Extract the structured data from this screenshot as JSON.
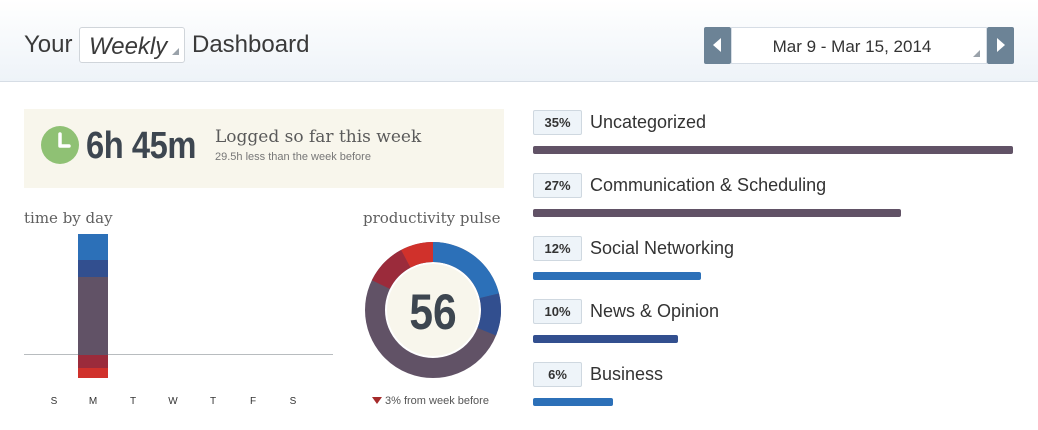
{
  "header": {
    "title_prefix": "Your",
    "period_value": "Weekly",
    "title_suffix": "Dashboard",
    "date_range": "Mar 9 - Mar 15, 2014"
  },
  "summary": {
    "total_time": "6h 45m",
    "label": "Logged so far this week",
    "comparison": "29.5h less than the week before"
  },
  "time_by_day": {
    "title": "time by day",
    "days": [
      "S",
      "M",
      "T",
      "W",
      "T",
      "F",
      "S"
    ]
  },
  "pulse": {
    "title": "productivity pulse",
    "value": "56",
    "delta_text": "3% from week before"
  },
  "categories": [
    {
      "percent": "35%",
      "name": "Uncategorized",
      "color": "#615266",
      "fill": 1.0
    },
    {
      "percent": "27%",
      "name": "Communication & Scheduling",
      "color": "#615266",
      "fill": 0.767
    },
    {
      "percent": "12%",
      "name": "Social Networking",
      "color": "#2c70b8",
      "fill": 0.35
    },
    {
      "percent": "10%",
      "name": "News & Opinion",
      "color": "#324f8f",
      "fill": 0.302
    },
    {
      "percent": "6%",
      "name": "Business",
      "color": "#2c70b8",
      "fill": 0.167
    }
  ],
  "colors": {
    "very_productive": "#2c70b8",
    "productive": "#324f8f",
    "neutral": "#615266",
    "distracting": "#9b2b3b",
    "very_distracting": "#d0312b",
    "clock": "#8fc174"
  }
}
